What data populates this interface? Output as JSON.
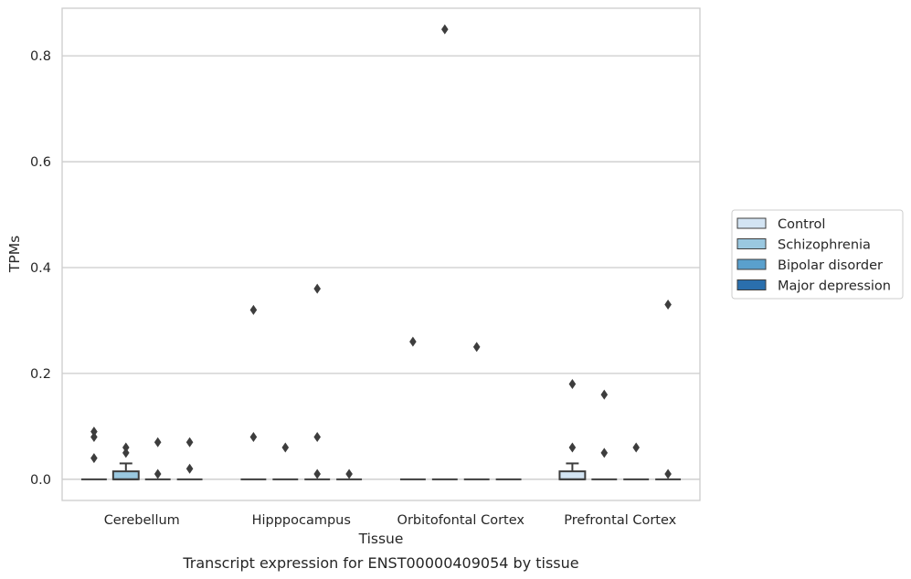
{
  "chart_data": {
    "type": "box",
    "xlabel": "Tissue",
    "ylabel": "TPMs",
    "caption": "Transcript expression for ENST00000409054 by tissue",
    "ylim": [
      -0.04,
      0.89
    ],
    "yticks": [
      0.0,
      0.2,
      0.4,
      0.6,
      0.8
    ],
    "ytick_labels": [
      "0.0",
      "0.2",
      "0.4",
      "0.6",
      "0.8"
    ],
    "categories": [
      "Cerebellum",
      "Hipppocampus",
      "Orbitofontal Cortex",
      "Prefrontal Cortex"
    ],
    "grid": "horizontal",
    "legend_position": "right",
    "series": [
      {
        "name": "Control",
        "color": "#d3e4f3",
        "boxes": [
          {
            "q1": 0,
            "median": 0,
            "q3": 0,
            "whisker_low": 0,
            "whisker_high": 0,
            "outliers": [
              0.09,
              0.08,
              0.04
            ]
          },
          {
            "q1": 0,
            "median": 0,
            "q3": 0,
            "whisker_low": 0,
            "whisker_high": 0,
            "outliers": [
              0.32,
              0.08
            ]
          },
          {
            "q1": 0,
            "median": 0,
            "q3": 0,
            "whisker_low": 0,
            "whisker_high": 0,
            "outliers": [
              0.26
            ]
          },
          {
            "q1": 0,
            "median": 0,
            "q3": 0.015,
            "whisker_low": 0,
            "whisker_high": 0.03,
            "outliers": [
              0.18,
              0.06
            ]
          }
        ]
      },
      {
        "name": "Schizophrenia",
        "color": "#9ac8e0",
        "boxes": [
          {
            "q1": 0,
            "median": 0,
            "q3": 0.015,
            "whisker_low": 0,
            "whisker_high": 0.03,
            "outliers": [
              0.06,
              0.05
            ]
          },
          {
            "q1": 0,
            "median": 0,
            "q3": 0,
            "whisker_low": 0,
            "whisker_high": 0,
            "outliers": [
              0.06
            ]
          },
          {
            "q1": 0,
            "median": 0,
            "q3": 0,
            "whisker_low": 0,
            "whisker_high": 0,
            "outliers": [
              0.85
            ]
          },
          {
            "q1": 0,
            "median": 0,
            "q3": 0,
            "whisker_low": 0,
            "whisker_high": 0,
            "outliers": [
              0.16,
              0.05
            ]
          }
        ]
      },
      {
        "name": "Bipolar disorder",
        "color": "#5aa0cd",
        "boxes": [
          {
            "q1": 0,
            "median": 0,
            "q3": 0,
            "whisker_low": 0,
            "whisker_high": 0,
            "outliers": [
              0.07,
              0.01
            ]
          },
          {
            "q1": 0,
            "median": 0,
            "q3": 0,
            "whisker_low": 0,
            "whisker_high": 0,
            "outliers": [
              0.36,
              0.08,
              0.01
            ]
          },
          {
            "q1": 0,
            "median": 0,
            "q3": 0,
            "whisker_low": 0,
            "whisker_high": 0,
            "outliers": [
              0.25
            ]
          },
          {
            "q1": 0,
            "median": 0,
            "q3": 0,
            "whisker_low": 0,
            "whisker_high": 0,
            "outliers": [
              0.06
            ]
          }
        ]
      },
      {
        "name": "Major depression",
        "color": "#2a6fad",
        "boxes": [
          {
            "q1": 0,
            "median": 0,
            "q3": 0,
            "whisker_low": 0,
            "whisker_high": 0,
            "outliers": [
              0.07,
              0.02
            ]
          },
          {
            "q1": 0,
            "median": 0,
            "q3": 0,
            "whisker_low": 0,
            "whisker_high": 0,
            "outliers": [
              0.01
            ]
          },
          {
            "q1": 0,
            "median": 0,
            "q3": 0,
            "whisker_low": 0,
            "whisker_high": 0,
            "outliers": []
          },
          {
            "q1": 0,
            "median": 0,
            "q3": 0,
            "whisker_low": 0,
            "whisker_high": 0,
            "outliers": [
              0.33,
              0.01
            ]
          }
        ]
      }
    ]
  }
}
